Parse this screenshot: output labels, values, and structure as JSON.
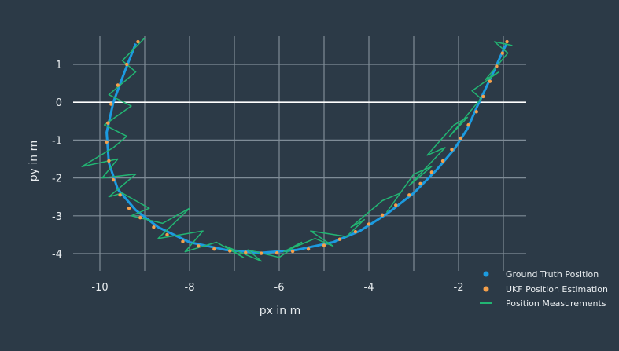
{
  "chart_data": {
    "type": "scatter",
    "title": "",
    "xlabel": "px in m",
    "ylabel": "py in m",
    "xlim": [
      -10.4,
      -0.8
    ],
    "ylim": [
      -4.4,
      1.7
    ],
    "x_ticks": [
      -10,
      -8,
      -6,
      -4,
      -2
    ],
    "y_ticks": [
      1,
      0,
      -1,
      -2,
      -3,
      -4
    ],
    "x_tick_labels": [
      "-10",
      "-8",
      "-6",
      "-4",
      "-2"
    ],
    "y_tick_labels": [
      "1",
      "0",
      "-1",
      "-2",
      "-3",
      "-4"
    ],
    "grid": true,
    "legend_position": "bottom-right",
    "series": [
      {
        "name": "Ground Truth Position",
        "kind": "line",
        "color": "#1c9be0",
        "x": [
          -9.2,
          -9.45,
          -9.7,
          -9.85,
          -9.8,
          -9.6,
          -9.2,
          -8.7,
          -8.0,
          -7.2,
          -6.4,
          -5.6,
          -4.8,
          -4.2,
          -3.6,
          -3.0,
          -2.5,
          -2.1,
          -1.8,
          -1.6,
          -1.4,
          -1.2,
          -1.05,
          -0.93
        ],
        "y": [
          1.55,
          0.8,
          0.0,
          -0.8,
          -1.6,
          -2.3,
          -2.85,
          -3.3,
          -3.7,
          -3.9,
          -3.98,
          -3.9,
          -3.7,
          -3.4,
          -2.95,
          -2.4,
          -1.8,
          -1.25,
          -0.7,
          -0.15,
          0.35,
          0.85,
          1.25,
          1.55
        ]
      },
      {
        "name": "UKF Position Estimation",
        "kind": "points",
        "color": "#f5a04b",
        "x": [
          -9.15,
          -9.4,
          -9.6,
          -9.75,
          -9.82,
          -9.85,
          -9.8,
          -9.7,
          -9.55,
          -9.35,
          -9.1,
          -8.8,
          -8.5,
          -8.15,
          -7.8,
          -7.45,
          -7.1,
          -6.75,
          -6.4,
          -6.05,
          -5.7,
          -5.35,
          -5.0,
          -4.65,
          -4.3,
          -4.0,
          -3.7,
          -3.4,
          -3.1,
          -2.85,
          -2.6,
          -2.35,
          -2.15,
          -1.95,
          -1.78,
          -1.6,
          -1.45,
          -1.3,
          -1.15,
          -1.02,
          -0.92
        ],
        "y": [
          1.6,
          1.0,
          0.45,
          -0.05,
          -0.55,
          -1.05,
          -1.55,
          -2.05,
          -2.45,
          -2.8,
          -3.05,
          -3.3,
          -3.5,
          -3.68,
          -3.8,
          -3.88,
          -3.93,
          -3.97,
          -3.99,
          -3.98,
          -3.94,
          -3.88,
          -3.78,
          -3.62,
          -3.42,
          -3.22,
          -2.98,
          -2.72,
          -2.45,
          -2.15,
          -1.85,
          -1.55,
          -1.25,
          -0.95,
          -0.6,
          -0.25,
          0.15,
          0.55,
          0.95,
          1.3,
          1.6
        ]
      },
      {
        "name": "Position Measurements",
        "kind": "line",
        "color": "#22b573",
        "x": [
          -9.0,
          -9.5,
          -9.2,
          -9.8,
          -9.3,
          -9.9,
          -9.4,
          -9.7,
          -10.4,
          -9.6,
          -9.95,
          -9.2,
          -9.8,
          -9.5,
          -8.9,
          -9.3,
          -8.6,
          -8.0,
          -8.7,
          -7.7,
          -8.1,
          -7.4,
          -6.8,
          -7.2,
          -6.4,
          -6.7,
          -6.0,
          -5.5,
          -5.9,
          -5.2,
          -4.8,
          -5.3,
          -4.5,
          -4.1,
          -4.4,
          -3.7,
          -3.3,
          -3.6,
          -3.0,
          -2.6,
          -3.1,
          -2.3,
          -2.7,
          -2.1,
          -1.8,
          -2.2,
          -1.5,
          -1.7,
          -1.1,
          -1.4,
          -0.9,
          -1.2,
          -0.8
        ],
        "y": [
          1.7,
          1.1,
          0.8,
          0.2,
          -0.1,
          -0.6,
          -0.9,
          -1.2,
          -1.7,
          -1.5,
          -2.0,
          -1.9,
          -2.5,
          -2.4,
          -2.8,
          -3.0,
          -3.2,
          -2.8,
          -3.6,
          -3.4,
          -3.95,
          -3.7,
          -4.1,
          -3.8,
          -4.2,
          -3.9,
          -4.1,
          -3.7,
          -3.95,
          -3.6,
          -3.8,
          -3.4,
          -3.55,
          -3.1,
          -3.3,
          -2.6,
          -2.4,
          -2.9,
          -1.9,
          -1.7,
          -2.2,
          -1.2,
          -1.4,
          -0.6,
          -0.4,
          -0.9,
          0.1,
          0.3,
          0.8,
          0.6,
          1.3,
          1.6,
          1.5
        ]
      }
    ]
  }
}
